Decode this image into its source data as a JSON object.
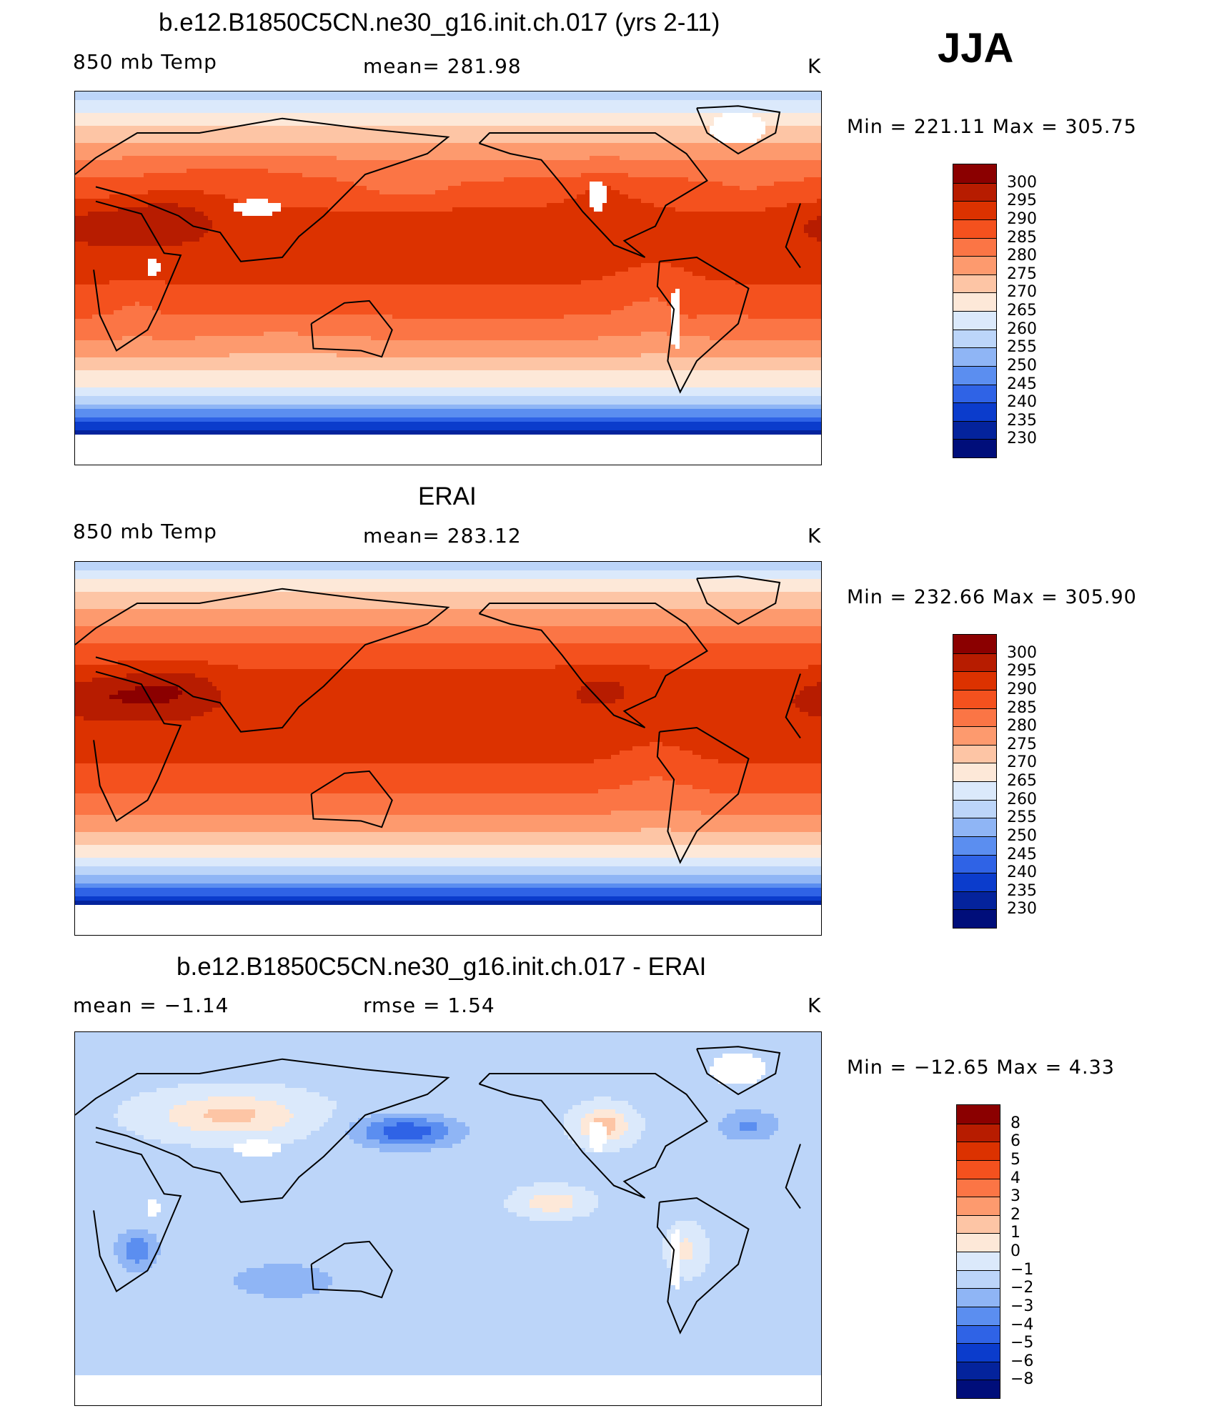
{
  "season": "JJA",
  "panels": [
    {
      "title": "b.e12.B1850C5CN.ne30_g16.init.ch.017 (yrs 2-11)",
      "left_label": "850 mb Temp",
      "center_label": "mean=  281.98",
      "units": "K",
      "minmax": "Min  =  221.11  Max  =  305.75",
      "field": "model",
      "colorbar": [
        "300",
        "295",
        "290",
        "285",
        "280",
        "275",
        "270",
        "265",
        "260",
        "255",
        "250",
        "245",
        "240",
        "235",
        "230"
      ]
    },
    {
      "title": "ERAI",
      "left_label": "850 mb Temp",
      "center_label": "mean=  283.12",
      "units": "K",
      "minmax": "Min  =  232.66  Max  =  305.90",
      "field": "obs",
      "colorbar": [
        "300",
        "295",
        "290",
        "285",
        "280",
        "275",
        "270",
        "265",
        "260",
        "255",
        "250",
        "245",
        "240",
        "235",
        "230"
      ]
    },
    {
      "title": "b.e12.B1850C5CN.ne30_g16.init.ch.017 - ERAI",
      "left_label": "mean  =   −1.14",
      "center_label": "rmse  =     1.54",
      "units": "K",
      "minmax": "Min  =  −12.65  Max  =     4.33",
      "field": "diff",
      "colorbar": [
        "8",
        "6",
        "5",
        "4",
        "3",
        "2",
        "1",
        "0",
        "−1",
        "−2",
        "−3",
        "−4",
        "−5",
        "−6",
        "−8"
      ]
    }
  ],
  "palettes": {
    "temp": [
      "#8b0000",
      "#b71c00",
      "#dc3200",
      "#f4511e",
      "#fb7545",
      "#fd9a6e",
      "#fdc5a5",
      "#fde8d8",
      "#dbe9fb",
      "#bcd5f9",
      "#8fb5f5",
      "#5b8ef0",
      "#2f63e6",
      "#0b3ccc",
      "#04239c",
      "#000e7a"
    ],
    "diff": [
      "#8b0000",
      "#b71c00",
      "#dc3200",
      "#f4511e",
      "#fb7545",
      "#fd9a6e",
      "#fdc5a5",
      "#fde8d8",
      "#dbe9fb",
      "#bcd5f9",
      "#8fb5f5",
      "#5b8ef0",
      "#2f63e6",
      "#0b3ccc",
      "#04239c",
      "#000e7a"
    ]
  }
}
